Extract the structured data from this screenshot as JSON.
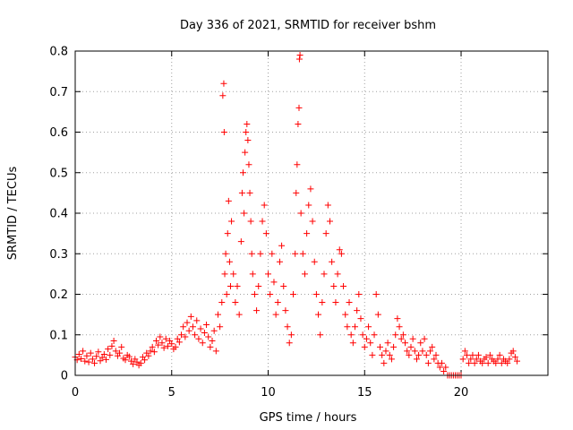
{
  "chart_data": {
    "type": "scatter",
    "title": "Day 336 of 2021, SRMTID for receiver bshm",
    "xlabel": "GPS time / hours",
    "ylabel": "SRMTID / TECUs",
    "xlim": [
      0,
      24.5
    ],
    "ylim": [
      0,
      0.8
    ],
    "xticks": [
      0,
      5,
      10,
      15,
      20
    ],
    "xtick_labels": [
      "0",
      "5",
      "10",
      "15",
      "20"
    ],
    "yticks": [
      0,
      0.1,
      0.2,
      0.3,
      0.4,
      0.5,
      0.6,
      0.7,
      0.8
    ],
    "ytick_labels": [
      "0",
      "0.1",
      "0.2",
      "0.3",
      "0.4",
      "0.5",
      "0.6",
      "0.7",
      "0.8"
    ],
    "grid": true,
    "marker": "+",
    "color": "#ff0000",
    "series": [
      {
        "name": "SRMTID",
        "points": [
          [
            0.0,
            0.045
          ],
          [
            0.1,
            0.038
          ],
          [
            0.2,
            0.052
          ],
          [
            0.3,
            0.041
          ],
          [
            0.4,
            0.06
          ],
          [
            0.5,
            0.035
          ],
          [
            0.6,
            0.048
          ],
          [
            0.7,
            0.033
          ],
          [
            0.8,
            0.055
          ],
          [
            0.9,
            0.04
          ],
          [
            1.0,
            0.03
          ],
          [
            1.1,
            0.047
          ],
          [
            1.2,
            0.058
          ],
          [
            1.3,
            0.036
          ],
          [
            1.4,
            0.044
          ],
          [
            1.5,
            0.052
          ],
          [
            1.6,
            0.039
          ],
          [
            1.7,
            0.065
          ],
          [
            1.8,
            0.05
          ],
          [
            1.9,
            0.072
          ],
          [
            2.0,
            0.085
          ],
          [
            2.1,
            0.06
          ],
          [
            2.2,
            0.048
          ],
          [
            2.3,
            0.055
          ],
          [
            2.4,
            0.07
          ],
          [
            2.5,
            0.042
          ],
          [
            2.6,
            0.038
          ],
          [
            2.7,
            0.05
          ],
          [
            2.8,
            0.046
          ],
          [
            2.9,
            0.035
          ],
          [
            3.0,
            0.028
          ],
          [
            3.1,
            0.04
          ],
          [
            3.2,
            0.033
          ],
          [
            3.3,
            0.025
          ],
          [
            3.4,
            0.03
          ],
          [
            3.5,
            0.045
          ],
          [
            3.6,
            0.038
          ],
          [
            3.7,
            0.055
          ],
          [
            3.8,
            0.048
          ],
          [
            3.9,
            0.06
          ],
          [
            4.0,
            0.07
          ],
          [
            4.1,
            0.058
          ],
          [
            4.2,
            0.085
          ],
          [
            4.3,
            0.075
          ],
          [
            4.4,
            0.095
          ],
          [
            4.5,
            0.08
          ],
          [
            4.6,
            0.068
          ],
          [
            4.7,
            0.09
          ],
          [
            4.8,
            0.072
          ],
          [
            4.9,
            0.085
          ],
          [
            5.0,
            0.078
          ],
          [
            5.1,
            0.065
          ],
          [
            5.2,
            0.07
          ],
          [
            5.3,
            0.09
          ],
          [
            5.4,
            0.082
          ],
          [
            5.5,
            0.1
          ],
          [
            5.6,
            0.12
          ],
          [
            5.7,
            0.095
          ],
          [
            5.8,
            0.13
          ],
          [
            5.9,
            0.11
          ],
          [
            6.0,
            0.145
          ],
          [
            6.1,
            0.12
          ],
          [
            6.2,
            0.1
          ],
          [
            6.3,
            0.135
          ],
          [
            6.4,
            0.09
          ],
          [
            6.5,
            0.115
          ],
          [
            6.6,
            0.08
          ],
          [
            6.7,
            0.105
          ],
          [
            6.8,
            0.125
          ],
          [
            6.9,
            0.095
          ],
          [
            7.0,
            0.07
          ],
          [
            7.1,
            0.085
          ],
          [
            7.2,
            0.11
          ],
          [
            7.3,
            0.06
          ],
          [
            7.4,
            0.15
          ],
          [
            7.5,
            0.12
          ],
          [
            7.6,
            0.18
          ],
          [
            7.65,
            0.69
          ],
          [
            7.7,
            0.72
          ],
          [
            7.72,
            0.6
          ],
          [
            7.75,
            0.25
          ],
          [
            7.8,
            0.3
          ],
          [
            7.85,
            0.2
          ],
          [
            7.9,
            0.35
          ],
          [
            7.95,
            0.43
          ],
          [
            8.0,
            0.28
          ],
          [
            8.05,
            0.22
          ],
          [
            8.1,
            0.38
          ],
          [
            8.2,
            0.25
          ],
          [
            8.3,
            0.18
          ],
          [
            8.4,
            0.22
          ],
          [
            8.5,
            0.15
          ],
          [
            8.6,
            0.33
          ],
          [
            8.65,
            0.45
          ],
          [
            8.7,
            0.5
          ],
          [
            8.75,
            0.4
          ],
          [
            8.8,
            0.55
          ],
          [
            8.85,
            0.6
          ],
          [
            8.9,
            0.62
          ],
          [
            8.95,
            0.58
          ],
          [
            9.0,
            0.52
          ],
          [
            9.05,
            0.45
          ],
          [
            9.1,
            0.38
          ],
          [
            9.15,
            0.3
          ],
          [
            9.2,
            0.25
          ],
          [
            9.3,
            0.2
          ],
          [
            9.4,
            0.16
          ],
          [
            9.5,
            0.22
          ],
          [
            9.6,
            0.3
          ],
          [
            9.7,
            0.38
          ],
          [
            9.8,
            0.42
          ],
          [
            9.9,
            0.35
          ],
          [
            10.0,
            0.25
          ],
          [
            10.1,
            0.2
          ],
          [
            10.2,
            0.3
          ],
          [
            10.3,
            0.23
          ],
          [
            10.4,
            0.15
          ],
          [
            10.5,
            0.18
          ],
          [
            10.6,
            0.28
          ],
          [
            10.7,
            0.32
          ],
          [
            10.8,
            0.22
          ],
          [
            10.9,
            0.16
          ],
          [
            11.0,
            0.12
          ],
          [
            11.1,
            0.08
          ],
          [
            11.2,
            0.1
          ],
          [
            11.3,
            0.2
          ],
          [
            11.4,
            0.3
          ],
          [
            11.45,
            0.45
          ],
          [
            11.5,
            0.52
          ],
          [
            11.55,
            0.62
          ],
          [
            11.6,
            0.66
          ],
          [
            11.62,
            0.78
          ],
          [
            11.65,
            0.79
          ],
          [
            11.7,
            0.4
          ],
          [
            11.8,
            0.3
          ],
          [
            11.9,
            0.25
          ],
          [
            12.0,
            0.35
          ],
          [
            12.1,
            0.42
          ],
          [
            12.2,
            0.46
          ],
          [
            12.3,
            0.38
          ],
          [
            12.4,
            0.28
          ],
          [
            12.5,
            0.2
          ],
          [
            12.6,
            0.15
          ],
          [
            12.7,
            0.1
          ],
          [
            12.8,
            0.18
          ],
          [
            12.9,
            0.25
          ],
          [
            13.0,
            0.35
          ],
          [
            13.1,
            0.42
          ],
          [
            13.2,
            0.38
          ],
          [
            13.3,
            0.28
          ],
          [
            13.4,
            0.22
          ],
          [
            13.5,
            0.18
          ],
          [
            13.6,
            0.25
          ],
          [
            13.7,
            0.31
          ],
          [
            13.8,
            0.3
          ],
          [
            13.9,
            0.22
          ],
          [
            14.0,
            0.15
          ],
          [
            14.1,
            0.12
          ],
          [
            14.2,
            0.18
          ],
          [
            14.3,
            0.1
          ],
          [
            14.4,
            0.08
          ],
          [
            14.5,
            0.12
          ],
          [
            14.6,
            0.16
          ],
          [
            14.7,
            0.2
          ],
          [
            14.8,
            0.14
          ],
          [
            14.9,
            0.1
          ],
          [
            15.0,
            0.07
          ],
          [
            15.1,
            0.09
          ],
          [
            15.2,
            0.12
          ],
          [
            15.3,
            0.08
          ],
          [
            15.4,
            0.05
          ],
          [
            15.5,
            0.1
          ],
          [
            15.6,
            0.2
          ],
          [
            15.7,
            0.15
          ],
          [
            15.8,
            0.07
          ],
          [
            15.9,
            0.05
          ],
          [
            16.0,
            0.03
          ],
          [
            16.1,
            0.06
          ],
          [
            16.2,
            0.08
          ],
          [
            16.3,
            0.05
          ],
          [
            16.4,
            0.04
          ],
          [
            16.5,
            0.07
          ],
          [
            16.6,
            0.1
          ],
          [
            16.7,
            0.14
          ],
          [
            16.8,
            0.12
          ],
          [
            16.9,
            0.09
          ],
          [
            17.0,
            0.1
          ],
          [
            17.1,
            0.08
          ],
          [
            17.2,
            0.06
          ],
          [
            17.3,
            0.05
          ],
          [
            17.4,
            0.07
          ],
          [
            17.5,
            0.09
          ],
          [
            17.6,
            0.06
          ],
          [
            17.7,
            0.04
          ],
          [
            17.8,
            0.05
          ],
          [
            17.9,
            0.08
          ],
          [
            18.0,
            0.06
          ],
          [
            18.1,
            0.09
          ],
          [
            18.2,
            0.05
          ],
          [
            18.3,
            0.03
          ],
          [
            18.4,
            0.06
          ],
          [
            18.5,
            0.07
          ],
          [
            18.6,
            0.04
          ],
          [
            18.7,
            0.05
          ],
          [
            18.8,
            0.03
          ],
          [
            18.9,
            0.02
          ],
          [
            19.0,
            0.03
          ],
          [
            19.1,
            0.01
          ],
          [
            19.2,
            0.02
          ],
          [
            19.3,
            0.0
          ],
          [
            19.4,
            0.0
          ],
          [
            19.5,
            0.0
          ],
          [
            19.6,
            0.0
          ],
          [
            19.7,
            0.0
          ],
          [
            19.8,
            0.0
          ],
          [
            19.9,
            0.0
          ],
          [
            20.0,
            0.0
          ],
          [
            20.1,
            0.04
          ],
          [
            20.2,
            0.06
          ],
          [
            20.3,
            0.05
          ],
          [
            20.4,
            0.03
          ],
          [
            20.5,
            0.04
          ],
          [
            20.6,
            0.05
          ],
          [
            20.7,
            0.03
          ],
          [
            20.8,
            0.04
          ],
          [
            20.9,
            0.05
          ],
          [
            21.0,
            0.035
          ],
          [
            21.1,
            0.03
          ],
          [
            21.2,
            0.04
          ],
          [
            21.3,
            0.045
          ],
          [
            21.4,
            0.03
          ],
          [
            21.5,
            0.05
          ],
          [
            21.6,
            0.04
          ],
          [
            21.7,
            0.035
          ],
          [
            21.8,
            0.03
          ],
          [
            21.9,
            0.04
          ],
          [
            22.0,
            0.05
          ],
          [
            22.1,
            0.03
          ],
          [
            22.2,
            0.04
          ],
          [
            22.3,
            0.035
          ],
          [
            22.4,
            0.03
          ],
          [
            22.5,
            0.04
          ],
          [
            22.6,
            0.055
          ],
          [
            22.7,
            0.06
          ],
          [
            22.8,
            0.045
          ],
          [
            22.9,
            0.035
          ]
        ]
      }
    ]
  }
}
